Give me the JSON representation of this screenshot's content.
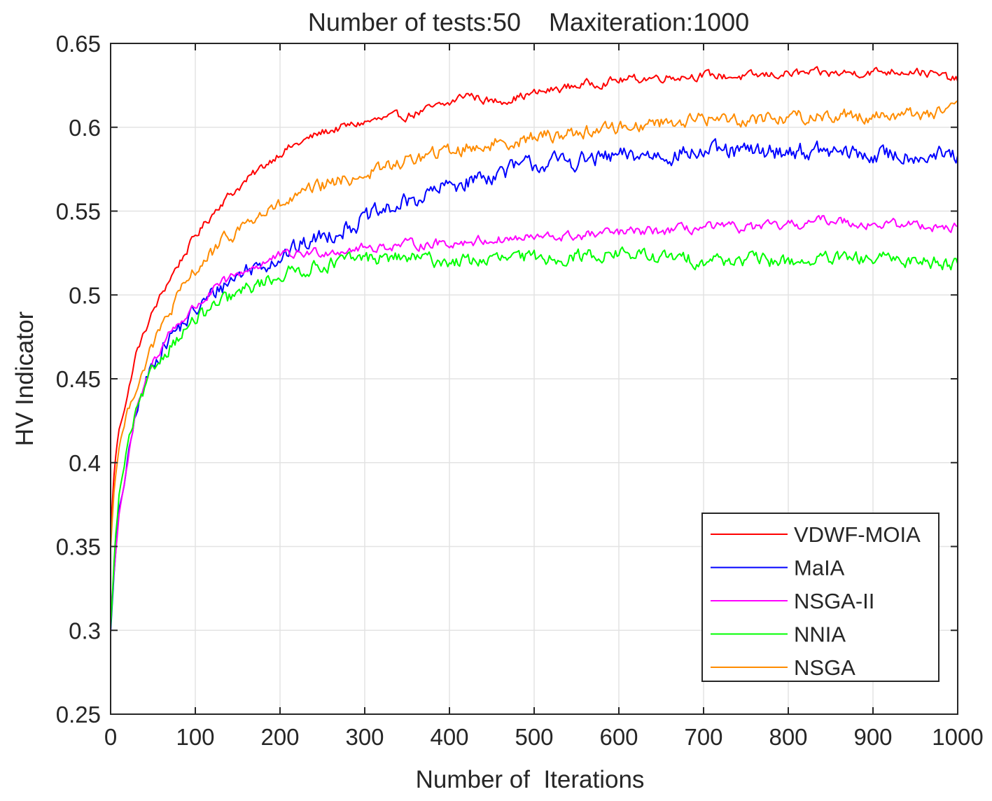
{
  "chart_data": {
    "type": "line",
    "title": "Number of tests:50    Maxiteration:1000",
    "xlabel": "Number of  Iterations",
    "ylabel": "HV Indicator",
    "xlim": [
      0,
      1000
    ],
    "ylim": [
      0.25,
      0.65
    ],
    "grid": true,
    "legend_position": "bottom-right",
    "x_ticks": [
      0,
      100,
      200,
      300,
      400,
      500,
      600,
      700,
      800,
      900,
      1000
    ],
    "x_tick_labels": [
      "0",
      "100",
      "200",
      "300",
      "400",
      "500",
      "600",
      "700",
      "800",
      "900",
      "1000"
    ],
    "y_ticks": [
      0.25,
      0.3,
      0.35,
      0.4,
      0.45,
      0.5,
      0.55,
      0.6,
      0.65
    ],
    "y_tick_labels": [
      "0.25",
      "0.3",
      "0.35",
      "0.4",
      "0.45",
      "0.5",
      "0.55",
      "0.6",
      "0.65"
    ],
    "series": [
      {
        "name": "VDWF-MOIA",
        "color": "#ff0000",
        "noise": 0.0022,
        "x": [
          0,
          5,
          10,
          20,
          30,
          50,
          70,
          100,
          130,
          160,
          200,
          250,
          300,
          350,
          400,
          420,
          450,
          500,
          550,
          600,
          650,
          700,
          750,
          800,
          850,
          900,
          950,
          1000
        ],
        "values": [
          0.36,
          0.4,
          0.42,
          0.44,
          0.465,
          0.49,
          0.51,
          0.535,
          0.555,
          0.568,
          0.585,
          0.597,
          0.603,
          0.607,
          0.614,
          0.62,
          0.615,
          0.62,
          0.625,
          0.628,
          0.63,
          0.631,
          0.63,
          0.632,
          0.632,
          0.633,
          0.634,
          0.628
        ]
      },
      {
        "name": "MaIA",
        "color": "#0000ff",
        "noise": 0.0045,
        "x": [
          0,
          5,
          10,
          20,
          30,
          50,
          70,
          100,
          130,
          160,
          200,
          250,
          300,
          350,
          400,
          450,
          500,
          550,
          600,
          650,
          700,
          750,
          800,
          850,
          900,
          950,
          1000
        ],
        "values": [
          0.3,
          0.34,
          0.37,
          0.4,
          0.43,
          0.46,
          0.475,
          0.49,
          0.505,
          0.515,
          0.523,
          0.535,
          0.545,
          0.555,
          0.565,
          0.572,
          0.578,
          0.58,
          0.582,
          0.584,
          0.585,
          0.585,
          0.586,
          0.585,
          0.583,
          0.584,
          0.582
        ]
      },
      {
        "name": "NSGA-II",
        "color": "#ff00ff",
        "noise": 0.0025,
        "x": [
          0,
          5,
          10,
          20,
          30,
          50,
          70,
          100,
          130,
          160,
          200,
          250,
          300,
          350,
          400,
          450,
          500,
          550,
          600,
          650,
          700,
          750,
          800,
          850,
          900,
          950,
          1000
        ],
        "values": [
          0.31,
          0.34,
          0.37,
          0.4,
          0.43,
          0.46,
          0.478,
          0.493,
          0.506,
          0.515,
          0.523,
          0.526,
          0.528,
          0.53,
          0.531,
          0.533,
          0.534,
          0.535,
          0.537,
          0.538,
          0.54,
          0.54,
          0.541,
          0.545,
          0.542,
          0.542,
          0.54
        ]
      },
      {
        "name": "NNIA",
        "color": "#00ff00",
        "noise": 0.0035,
        "x": [
          0,
          5,
          10,
          20,
          30,
          50,
          70,
          100,
          130,
          160,
          200,
          250,
          300,
          350,
          400,
          450,
          500,
          550,
          600,
          650,
          700,
          750,
          800,
          850,
          900,
          950,
          1000
        ],
        "values": [
          0.3,
          0.35,
          0.38,
          0.41,
          0.43,
          0.455,
          0.47,
          0.485,
          0.495,
          0.503,
          0.512,
          0.518,
          0.522,
          0.522,
          0.52,
          0.521,
          0.522,
          0.523,
          0.525,
          0.522,
          0.521,
          0.521,
          0.52,
          0.521,
          0.521,
          0.521,
          0.519
        ]
      },
      {
        "name": "NSGA",
        "color": "#ff8c00",
        "noise": 0.0035,
        "x": [
          0,
          5,
          10,
          20,
          30,
          50,
          70,
          100,
          130,
          160,
          200,
          250,
          300,
          350,
          400,
          450,
          500,
          550,
          600,
          650,
          700,
          750,
          800,
          850,
          900,
          950,
          1000
        ],
        "values": [
          0.35,
          0.39,
          0.41,
          0.43,
          0.445,
          0.47,
          0.49,
          0.515,
          0.53,
          0.543,
          0.553,
          0.565,
          0.572,
          0.58,
          0.586,
          0.59,
          0.594,
          0.597,
          0.6,
          0.603,
          0.605,
          0.605,
          0.606,
          0.607,
          0.607,
          0.608,
          0.61
        ]
      }
    ]
  }
}
